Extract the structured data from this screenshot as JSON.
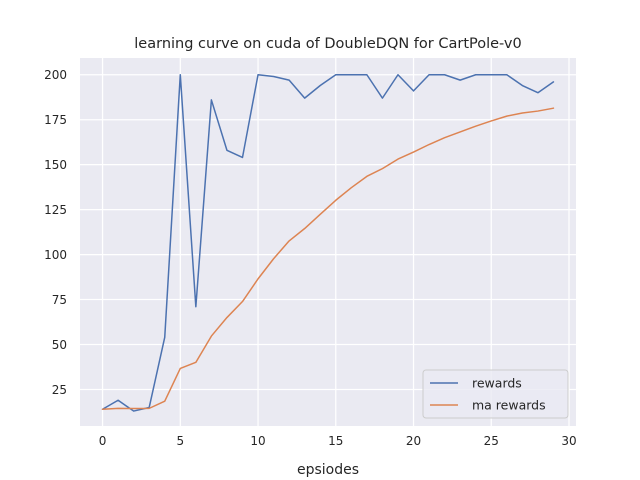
{
  "chart_data": {
    "type": "line",
    "title": "learning curve on cuda of DoubleDQN for CartPole-v0",
    "xlabel": "epsiodes",
    "ylabel": "",
    "xlim": [
      -1.45,
      30.45
    ],
    "ylim": [
      4.7,
      209.3
    ],
    "xticks": [
      0,
      5,
      10,
      15,
      20,
      25,
      30
    ],
    "yticks": [
      25,
      50,
      75,
      100,
      125,
      150,
      175,
      200
    ],
    "grid": true,
    "legend_position": "lower-right",
    "background": "#eaeaf2",
    "x": [
      0,
      1,
      2,
      3,
      4,
      5,
      6,
      7,
      8,
      9,
      10,
      11,
      12,
      13,
      14,
      15,
      16,
      17,
      18,
      19,
      20,
      21,
      22,
      23,
      24,
      25,
      26,
      27,
      28,
      29
    ],
    "series": [
      {
        "name": "rewards",
        "color": "#4c72b0",
        "values": [
          14,
          19,
          13,
          15,
          54,
          200,
          71,
          186,
          158,
          154,
          200,
          199,
          197,
          187,
          194,
          200,
          200,
          200,
          187,
          200,
          191,
          200,
          200,
          197,
          200,
          200,
          200,
          194,
          190,
          196
        ]
      },
      {
        "name": "ma rewards",
        "color": "#dd8452",
        "values": [
          14,
          14.5,
          14.4,
          14.5,
          18.5,
          36.7,
          40.1,
          54.7,
          65,
          73.9,
          86.5,
          97.7,
          107.6,
          114.5,
          122.4,
          130.2,
          137.2,
          143.5,
          147.8,
          153.1,
          157,
          161.2,
          165,
          168.2,
          171.4,
          174.3,
          177,
          178.7,
          179.8,
          181.4
        ]
      }
    ]
  }
}
